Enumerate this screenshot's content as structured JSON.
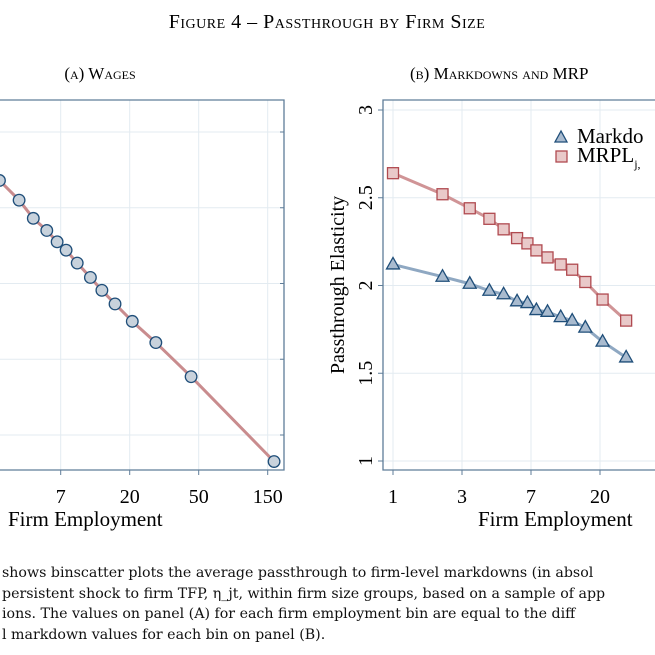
{
  "figure": {
    "title": "Figure 4 – Passthrough by Firm Size",
    "caption_lines": [
      "shows binscatter plots the average passthrough to firm-level markdowns (in absol",
      "persistent shock to firm TFP, η_jt, within firm size groups, based on a sample of app",
      "ions.  The values on panel (A) for each firm employment bin are equal to the diff",
      "l markdown values for each bin on panel (B)."
    ]
  },
  "chart_data": [
    {
      "panel": "(a) Wages",
      "type": "line",
      "title": "(a) Wages",
      "xlabel": "Firm Employment",
      "ylabel": "",
      "x_scale": "log-binned",
      "x_ticks": [
        7,
        20,
        50,
        150
      ],
      "y_ticks": [],
      "grid": true,
      "series": [
        {
          "x": [
            3.3,
            4.2,
            5.0,
            5.9,
            6.7,
            7.6,
            9.0,
            11.0,
            13.1,
            16.0,
            20.7,
            28.3,
            45.2,
            166
          ],
          "y": [
            3.36,
            3.1,
            2.86,
            2.7,
            2.55,
            2.44,
            2.27,
            2.08,
            1.91,
            1.73,
            1.5,
            1.22,
            0.77,
            -0.35
          ],
          "marker": "circle",
          "line_color": "#c98c8e",
          "marker_fill": "#c8d2dc",
          "marker_stroke": "#1f4e79"
        }
      ]
    },
    {
      "panel": "(b) Markdowns and MRPL",
      "type": "line",
      "title": "(b) Markdowns and MRP",
      "xlabel": "Firm Employment",
      "ylabel": "Passthrough Elasticity",
      "x_scale": "log-binned",
      "x_ticks": [
        1,
        3,
        7,
        20
      ],
      "y_ticks": [
        "1",
        "1.5",
        "2",
        "2.5",
        "3"
      ],
      "ylim": [
        1,
        3
      ],
      "grid": true,
      "legend_position": "top-right",
      "series": [
        {
          "name": "Markdo",
          "x": [
            1,
            2.2,
            3.3,
            4.2,
            5.0,
            5.9,
            6.7,
            7.6,
            9.0,
            11.0,
            13.1,
            16.0,
            20.7,
            28.3
          ],
          "y": [
            2.12,
            2.05,
            2.01,
            1.97,
            1.95,
            1.91,
            1.9,
            1.86,
            1.85,
            1.82,
            1.8,
            1.76,
            1.68,
            1.59
          ],
          "marker": "triangle",
          "line_color": "#8fa8c2",
          "marker_fill": "#a9bbcf",
          "marker_stroke": "#1f4e79"
        },
        {
          "name": "MRPL",
          "name_subscript": "j,",
          "x": [
            1,
            2.2,
            3.3,
            4.2,
            5.0,
            5.9,
            6.7,
            7.6,
            9.0,
            11.0,
            13.1,
            16.0,
            20.7,
            28.3
          ],
          "y": [
            2.64,
            2.52,
            2.44,
            2.38,
            2.32,
            2.27,
            2.24,
            2.2,
            2.16,
            2.12,
            2.09,
            2.02,
            1.92,
            1.8
          ],
          "marker": "square",
          "line_color": "#d09496",
          "marker_fill": "#e9c9c9",
          "marker_stroke": "#b04a50"
        }
      ]
    }
  ]
}
